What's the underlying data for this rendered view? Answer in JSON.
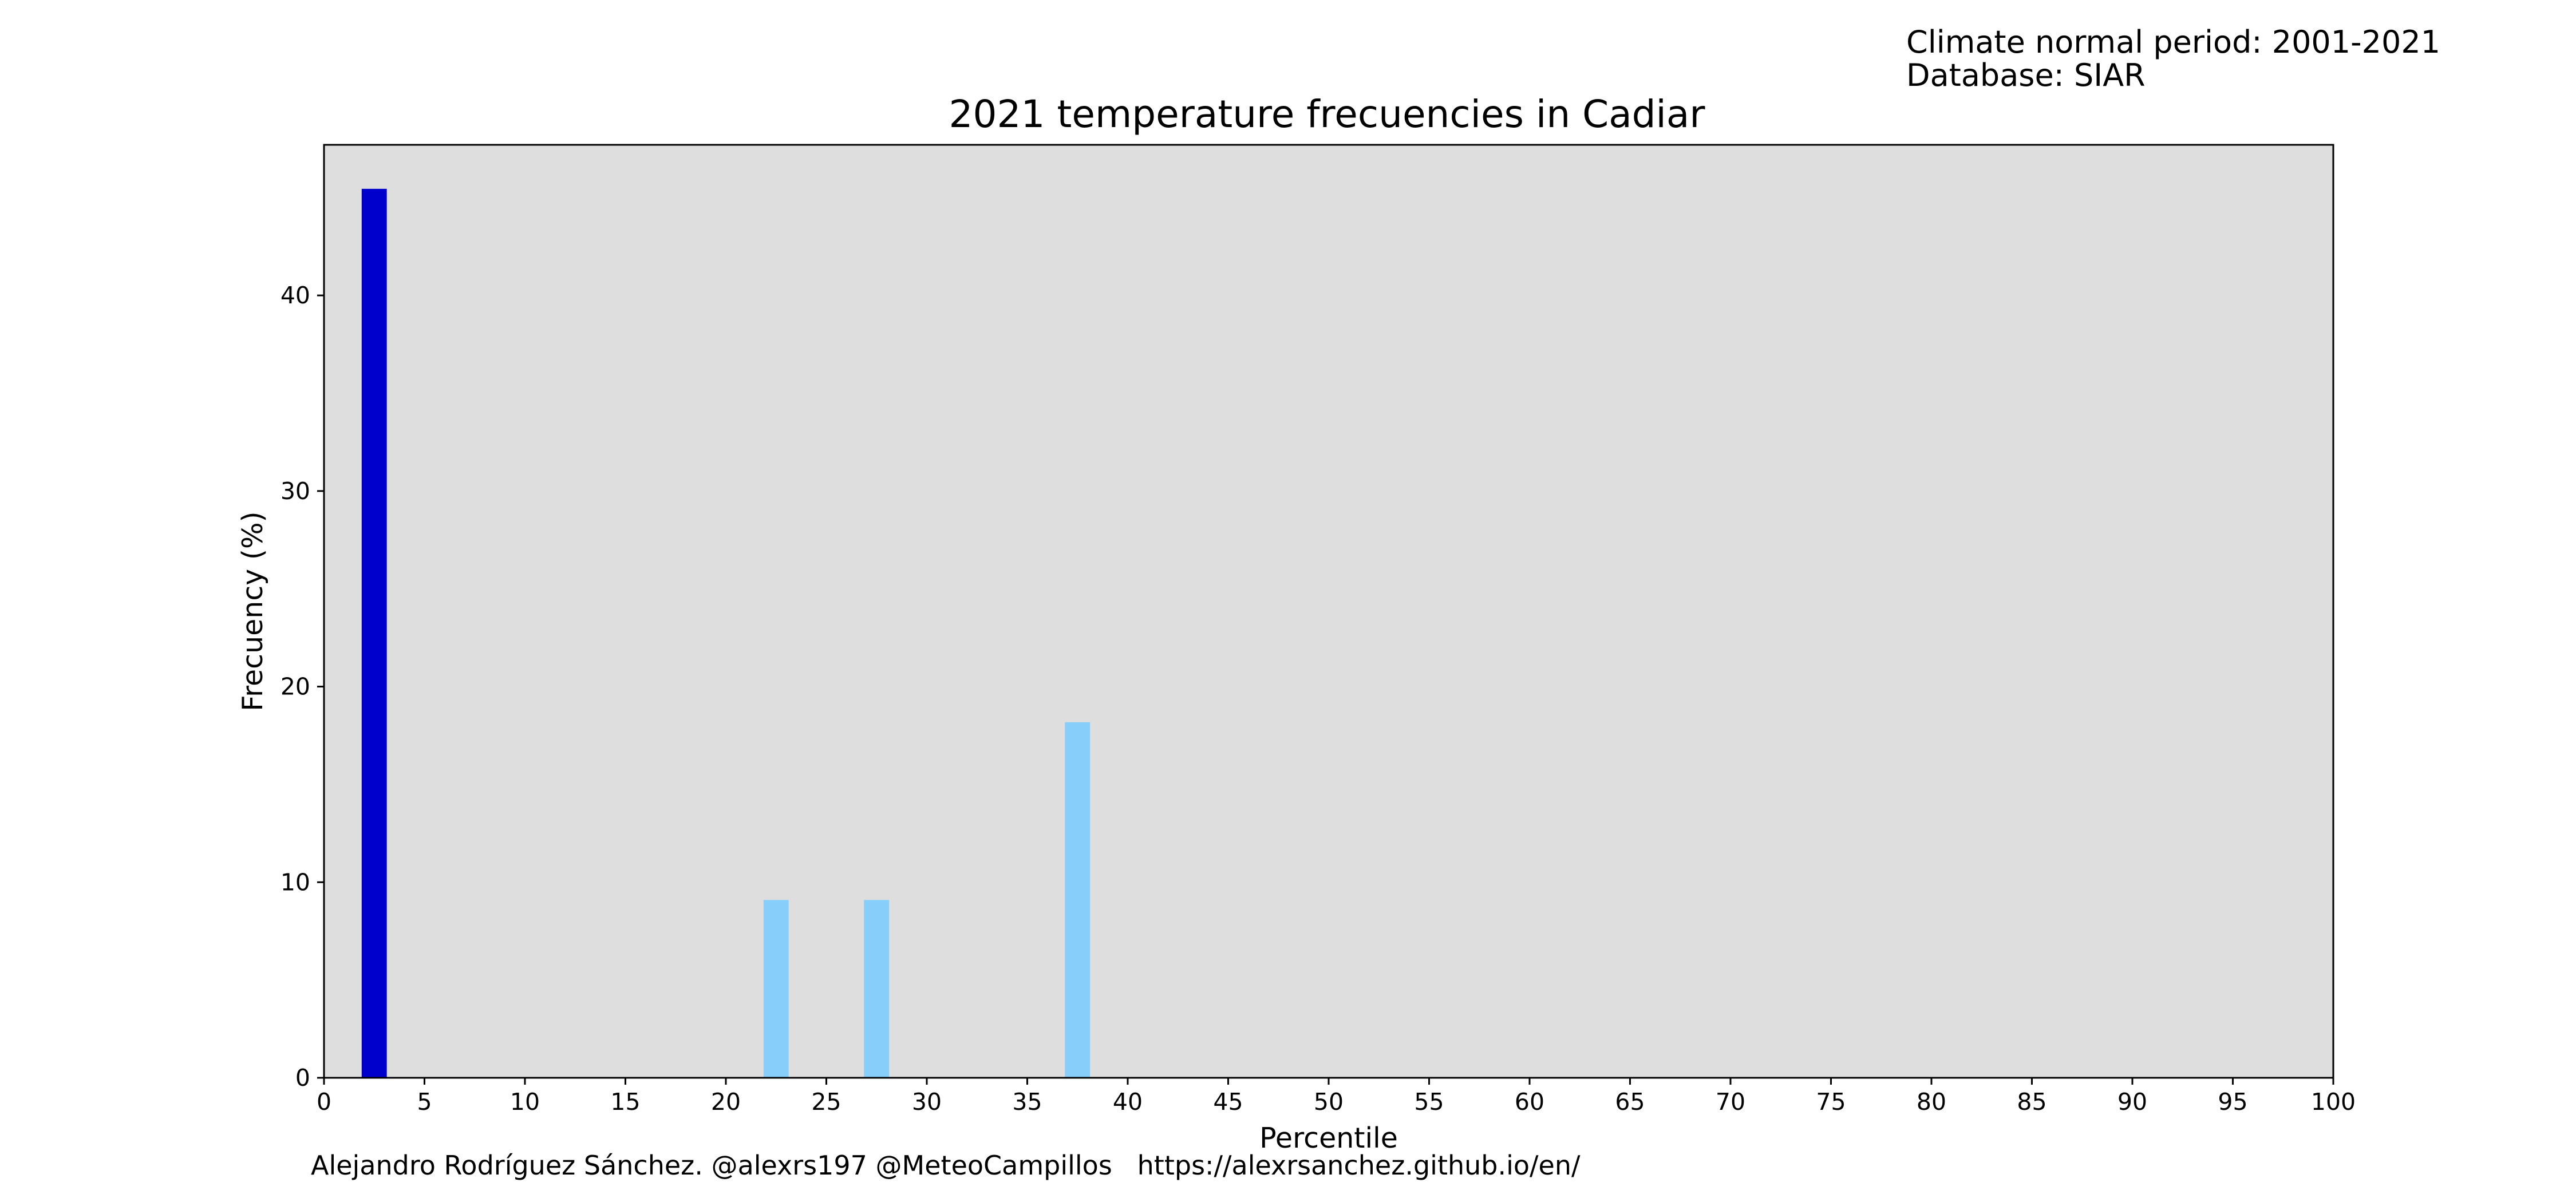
{
  "header": {
    "climate_normal": "Climate normal period: 2001-2021",
    "database": "Database: SIAR"
  },
  "footer": {
    "credits": "Alejandro Rodríguez Sánchez. @alexrs197 @MeteoCampillos   https://alexrsanchez.github.io/en/"
  },
  "chart_data": {
    "type": "bar",
    "title": "2021 temperature frecuencies in Cadiar",
    "xlabel": "Percentile",
    "ylabel": "Frecuency (%)",
    "xlim": [
      0,
      100
    ],
    "ylim": [
      0,
      47.7
    ],
    "xticks": [
      0,
      5,
      10,
      15,
      20,
      25,
      30,
      35,
      40,
      45,
      50,
      55,
      60,
      65,
      70,
      75,
      80,
      85,
      90,
      95,
      100
    ],
    "yticks": [
      0,
      10,
      20,
      30,
      40
    ],
    "bar_width": 1.25,
    "plot_background": "#dedede",
    "bars": [
      {
        "x": 2.5,
        "value": 45.45,
        "color": "#0000cd"
      },
      {
        "x": 22.5,
        "value": 9.09,
        "color": "#87cefa"
      },
      {
        "x": 27.5,
        "value": 9.09,
        "color": "#87cefa"
      },
      {
        "x": 37.5,
        "value": 18.18,
        "color": "#87cefa"
      }
    ],
    "grid": false,
    "legend": "none"
  }
}
